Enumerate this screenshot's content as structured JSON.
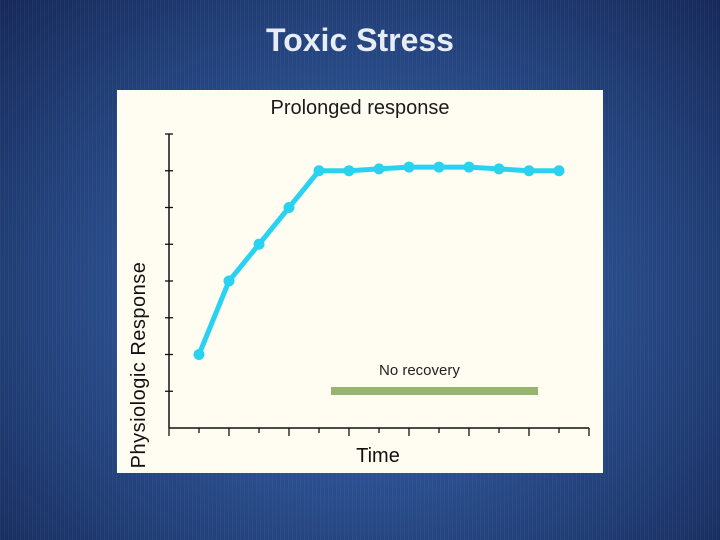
{
  "slide": {
    "title": "Toxic Stress"
  },
  "chart_data": {
    "type": "line",
    "title": "Prolonged response",
    "xlabel": "Time",
    "ylabel": "Physiologic Response",
    "x": [
      1,
      2,
      3,
      4,
      5,
      6,
      7,
      8,
      9,
      10,
      11,
      12,
      13
    ],
    "xlim": [
      0,
      14
    ],
    "ylim": [
      0,
      8
    ],
    "grid": false,
    "series": [
      {
        "values": [
          2,
          4,
          5,
          6,
          7,
          7,
          7.05,
          7.1,
          7.1,
          7.1,
          7.05,
          7.0,
          7.0
        ],
        "color": "#29d3f0"
      }
    ],
    "annotation": {
      "text": "No recovery",
      "x_start": 5.4,
      "x_end": 12.3,
      "color": "#97b56e"
    }
  }
}
